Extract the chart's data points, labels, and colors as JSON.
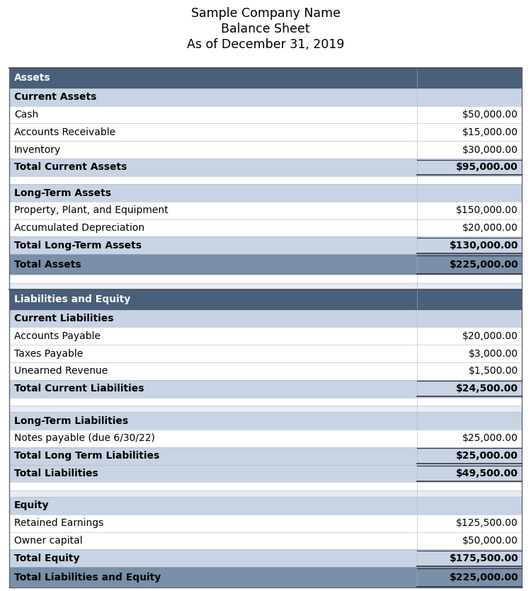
{
  "title_lines": [
    "Sample Company Name",
    "Balance Sheet",
    "As of December 31, 2019"
  ],
  "title_fontsize": 12.5,
  "body_fontsize": 10.0,
  "fig_bg": "#ffffff",
  "col_split": 0.795,
  "dark_header_bg": "#4a5f7a",
  "dark_header_fg": "#ffffff",
  "subheader_bg": "#c8d3e3",
  "subheader_fg": "#000000",
  "total_major_bg": "#7a8fa8",
  "total_major_fg": "#000000",
  "blank_bg": "#ffffff",
  "blank2_bg": "#e8ecf3",
  "item_bg": "#ffffff",
  "item_fg": "#000000",
  "subtotal_bg": "#c8d3e3",
  "rows": [
    {
      "type": "dark_header",
      "label": "Assets",
      "value": "",
      "bold": true
    },
    {
      "type": "subheader",
      "label": "Current Assets",
      "value": "",
      "bold": true
    },
    {
      "type": "item",
      "label": "Cash",
      "value": "$50,000.00",
      "bold": false
    },
    {
      "type": "item",
      "label": "Accounts Receivable",
      "value": "$15,000.00",
      "bold": false
    },
    {
      "type": "item",
      "label": "Inventory",
      "value": "$30,000.00",
      "bold": false
    },
    {
      "type": "subtotal",
      "label": "Total Current Assets",
      "value": "$95,000.00",
      "bold": true
    },
    {
      "type": "blank",
      "label": "",
      "value": "",
      "bold": false
    },
    {
      "type": "subheader",
      "label": "Long-Term Assets",
      "value": "",
      "bold": true
    },
    {
      "type": "item",
      "label": "Property, Plant, and Equipment",
      "value": "$150,000.00",
      "bold": false
    },
    {
      "type": "item",
      "label": "Accumulated Depreciation",
      "value": "$20,000.00",
      "bold": false
    },
    {
      "type": "subtotal",
      "label": "Total Long-Term Assets",
      "value": "$130,000.00",
      "bold": true
    },
    {
      "type": "total_major",
      "label": "Total Assets",
      "value": "$225,000.00",
      "bold": true
    },
    {
      "type": "blank",
      "label": "",
      "value": "",
      "bold": false
    },
    {
      "type": "blank2",
      "label": "",
      "value": "",
      "bold": false
    },
    {
      "type": "dark_header",
      "label": "Liabilities and Equity",
      "value": "",
      "bold": true
    },
    {
      "type": "subheader",
      "label": "Current Liabilities",
      "value": "",
      "bold": true
    },
    {
      "type": "item",
      "label": "Accounts Payable",
      "value": "$20,000.00",
      "bold": false
    },
    {
      "type": "item",
      "label": "Taxes Payable",
      "value": "$3,000.00",
      "bold": false
    },
    {
      "type": "item",
      "label": "Unearned Revenue",
      "value": "$1,500.00",
      "bold": false
    },
    {
      "type": "subtotal",
      "label": "Total Current Liabilities",
      "value": "$24,500.00",
      "bold": true
    },
    {
      "type": "blank",
      "label": "",
      "value": "",
      "bold": false
    },
    {
      "type": "blank2",
      "label": "",
      "value": "",
      "bold": false
    },
    {
      "type": "subheader",
      "label": "Long-Term Liabilities",
      "value": "",
      "bold": true
    },
    {
      "type": "item",
      "label": "Notes payable (due 6/30/22)",
      "value": "$25,000.00",
      "bold": false
    },
    {
      "type": "subtotal",
      "label": "Total Long Term Liabilities",
      "value": "$25,000.00",
      "bold": true
    },
    {
      "type": "subtotal",
      "label": "Total Liabilities",
      "value": "$49,500.00",
      "bold": true
    },
    {
      "type": "blank",
      "label": "",
      "value": "",
      "bold": false
    },
    {
      "type": "blank2",
      "label": "",
      "value": "",
      "bold": false
    },
    {
      "type": "subheader",
      "label": "Equity",
      "value": "",
      "bold": true
    },
    {
      "type": "item",
      "label": "Retained Earnings",
      "value": "$125,500.00",
      "bold": false
    },
    {
      "type": "item",
      "label": "Owner capital",
      "value": "$50,000.00",
      "bold": false
    },
    {
      "type": "subtotal",
      "label": "Total Equity",
      "value": "$175,500.00",
      "bold": true
    },
    {
      "type": "total_major",
      "label": "Total Liabilities and Equity",
      "value": "$225,000.00",
      "bold": true
    }
  ],
  "row_heights": {
    "dark_header": 1.4,
    "subheader": 1.2,
    "item": 1.2,
    "subtotal": 1.2,
    "total_major": 1.4,
    "blank": 0.55,
    "blank2": 0.45
  }
}
